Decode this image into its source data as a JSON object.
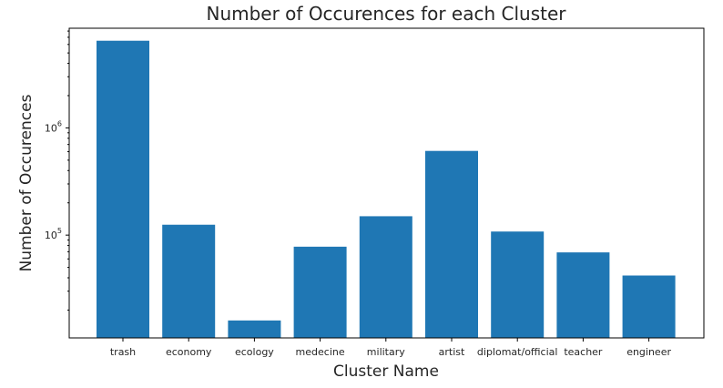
{
  "chart_data": {
    "type": "bar",
    "title": "Number of Occurences for each Cluster",
    "xlabel": "Cluster Name",
    "ylabel": "Number of Occurences",
    "yscale": "log",
    "ylim": [
      11000,
      8500000
    ],
    "bar_color": "#1f77b4",
    "categories": [
      "trash",
      "economy",
      "ecology",
      "medecine",
      "military",
      "artist",
      "diplomat/official",
      "teacher",
      "engineer"
    ],
    "values": [
      6500000,
      125000,
      16000,
      78000,
      150000,
      610000,
      108000,
      69000,
      42000
    ],
    "yticks": [
      {
        "value": 100000,
        "base": "10",
        "exp": "5"
      },
      {
        "value": 1000000,
        "base": "10",
        "exp": "6"
      }
    ],
    "grid": false,
    "legend": "none"
  }
}
